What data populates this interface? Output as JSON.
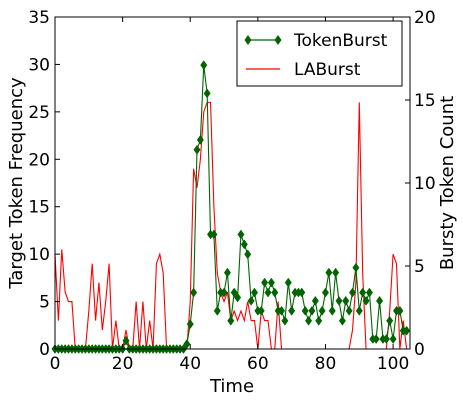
{
  "chart_data": {
    "type": "line",
    "xlabel": "Time",
    "ylabel_left": "Target Token Frequency",
    "ylabel_right": "Bursty Token Count",
    "xlim": [
      0,
      105
    ],
    "ylim_left": [
      0,
      35
    ],
    "ylim_right": [
      0,
      20
    ],
    "x_ticks": [
      0,
      20,
      40,
      60,
      80,
      100
    ],
    "y_ticks_left": [
      0,
      5,
      10,
      15,
      20,
      25,
      30,
      35
    ],
    "y_ticks_right": [
      0,
      5,
      10,
      15,
      20
    ],
    "grid": false,
    "legend_position": "top-right",
    "series": [
      {
        "name": "TokenBurst",
        "axis": "right",
        "color": "#006400",
        "marker": "diamond",
        "x": [
          0,
          1,
          2,
          3,
          4,
          5,
          6,
          7,
          8,
          9,
          10,
          11,
          12,
          13,
          14,
          15,
          16,
          17,
          18,
          19,
          20,
          21,
          22,
          23,
          24,
          25,
          26,
          27,
          28,
          29,
          30,
          31,
          32,
          33,
          34,
          35,
          36,
          37,
          38,
          39,
          40,
          41,
          42,
          43,
          44,
          45,
          46,
          47,
          48,
          49,
          50,
          51,
          52,
          53,
          54,
          55,
          56,
          57,
          58,
          59,
          60,
          61,
          62,
          63,
          64,
          65,
          66,
          67,
          68,
          69,
          70,
          71,
          72,
          73,
          74,
          75,
          76,
          77,
          78,
          79,
          80,
          81,
          82,
          83,
          84,
          85,
          86,
          87,
          88,
          89,
          90,
          91,
          92,
          93,
          94,
          95,
          96,
          97,
          98,
          99,
          100,
          101,
          102,
          103,
          104
        ],
        "y": [
          0,
          0,
          0,
          0,
          0,
          0,
          0,
          0,
          0,
          0,
          0,
          0,
          0,
          0,
          0,
          0,
          0,
          0,
          0,
          0,
          0,
          0.5,
          0,
          0,
          0,
          0,
          0,
          0,
          0,
          0,
          0,
          0,
          0,
          0,
          0,
          0,
          0,
          0,
          0,
          0.3,
          1.5,
          3.4,
          12,
          12.6,
          17.1,
          15.4,
          6.9,
          6.9,
          2.3,
          3.4,
          3.4,
          4.6,
          1.7,
          3.4,
          3.1,
          6.9,
          6.3,
          5.7,
          2.9,
          3.4,
          2.3,
          2.3,
          4,
          3.4,
          4,
          3.4,
          2.3,
          2.3,
          1.7,
          4,
          2.3,
          3.4,
          3.4,
          3.4,
          2.3,
          1.7,
          2.3,
          2.9,
          1.7,
          2.3,
          3.4,
          4.6,
          2.3,
          4.6,
          2.9,
          1.7,
          2.9,
          2.3,
          3.4,
          4.9,
          2.3,
          3.4,
          2.9,
          3.4,
          0.6,
          0.6,
          2.9,
          0.6,
          0.6,
          1.7,
          0.6,
          2.3,
          2.3,
          1.1,
          1.1
        ]
      },
      {
        "name": "LABurst",
        "axis": "left",
        "color": "#ff0000",
        "marker": "none",
        "x": [
          0,
          1,
          2,
          3,
          4,
          5,
          6,
          7,
          8,
          9,
          10,
          11,
          12,
          13,
          14,
          15,
          16,
          17,
          18,
          19,
          20,
          21,
          22,
          23,
          24,
          25,
          26,
          27,
          28,
          29,
          30,
          31,
          32,
          33,
          34,
          35,
          36,
          37,
          38,
          39,
          40,
          41,
          42,
          43,
          44,
          45,
          46,
          47,
          48,
          49,
          50,
          51,
          52,
          53,
          54,
          55,
          56,
          57,
          58,
          59,
          60,
          61,
          62,
          63,
          64,
          65,
          66,
          67,
          68,
          69,
          70,
          71,
          72,
          73,
          74,
          75,
          76,
          77,
          78,
          79,
          80,
          81,
          82,
          83,
          84,
          85,
          86,
          87,
          88,
          89,
          90,
          91,
          92,
          93,
          94,
          95,
          96,
          97,
          98,
          99,
          100,
          101,
          102,
          103,
          104
        ],
        "y": [
          10,
          3,
          10.5,
          6,
          5,
          5,
          0,
          0,
          0,
          0,
          4,
          9,
          3,
          7,
          2,
          5,
          9,
          0,
          3,
          0,
          0,
          2,
          0,
          0,
          5,
          0,
          5,
          0,
          3,
          0,
          9,
          10,
          8,
          0,
          0,
          0,
          0,
          0,
          0,
          0,
          5,
          19,
          17,
          20,
          25,
          26,
          26,
          15,
          8,
          6,
          5,
          6,
          3,
          4,
          3,
          4,
          3,
          5,
          3,
          3,
          0,
          4,
          3,
          3,
          0,
          0,
          5,
          0,
          0,
          0,
          0,
          0,
          0,
          0,
          0,
          0,
          0,
          0,
          0,
          0,
          0,
          0,
          0,
          0,
          0,
          0,
          0,
          0,
          2,
          7,
          26,
          8,
          0,
          0,
          0,
          0,
          0,
          0,
          0,
          4,
          10,
          9,
          0,
          3,
          0
        ]
      }
    ]
  }
}
